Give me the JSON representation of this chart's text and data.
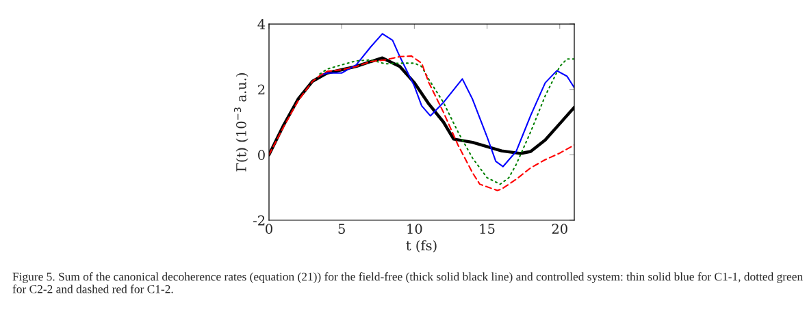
{
  "chart_data": {
    "type": "line",
    "xlabel": "t (fs)",
    "ylabel": "Γ(t) (10$^{−3}$ a.u.)",
    "xlim": [
      0,
      21
    ],
    "ylim": [
      -2,
      4
    ],
    "xticks": [
      0,
      5,
      10,
      15,
      20
    ],
    "yticks": [
      {
        "value": -2,
        "label": "-2"
      },
      0,
      2,
      4
    ],
    "grid": false,
    "marker": "none",
    "annotations": [
      "Figure 5. Sum of the canonical decoherence rates (equation (21)) for the field-free (thick solid black line) and controlled system: thin solid blue for C1-1, dotted green for C2-2 and dashed red for C1-2."
    ],
    "series": [
      {
        "color": "#000000",
        "line_style": "solid",
        "x": [
          0,
          1,
          2,
          3,
          4,
          5,
          6,
          7,
          7.8,
          9,
          10,
          11,
          12,
          12.7,
          14,
          15,
          16,
          17.3,
          18,
          19,
          20,
          21
        ],
        "values": [
          0,
          0.9,
          1.7,
          2.25,
          2.5,
          2.6,
          2.7,
          2.85,
          2.96,
          2.7,
          2.2,
          1.55,
          1.0,
          0.48,
          0.38,
          0.25,
          0.12,
          0.04,
          0.1,
          0.45,
          0.95,
          1.45
        ]
      },
      {
        "color": "#0000ff",
        "line_style": "solid",
        "x": [
          3.5,
          4,
          5,
          6,
          7,
          7.8,
          8.5,
          9,
          10,
          10.5,
          11.1,
          12,
          13.3,
          14,
          15,
          15.6,
          16.1,
          17,
          18,
          19,
          19.8,
          20.5,
          21
        ],
        "values": [
          2.42,
          2.5,
          2.5,
          2.75,
          3.3,
          3.7,
          3.5,
          3.0,
          2.1,
          1.5,
          1.19,
          1.6,
          2.32,
          1.7,
          0.55,
          -0.2,
          -0.36,
          0.1,
          1.2,
          2.2,
          2.57,
          2.4,
          2.05
        ]
      },
      {
        "color": "#008000",
        "line_style": "dotted",
        "x": [
          3.5,
          4,
          5,
          6,
          7,
          8,
          9,
          10,
          10.5,
          11,
          12,
          13,
          14,
          15,
          15.9,
          16.5,
          17,
          18,
          19,
          20,
          20.5,
          21
        ],
        "values": [
          2.47,
          2.62,
          2.75,
          2.87,
          2.9,
          2.78,
          2.8,
          2.8,
          2.7,
          2.3,
          1.6,
          0.7,
          -0.1,
          -0.7,
          -0.9,
          -0.7,
          -0.3,
          0.7,
          1.8,
          2.7,
          2.93,
          2.93
        ]
      },
      {
        "color": "#ff0000",
        "line_style": "dashed",
        "x": [
          0,
          1,
          2,
          3,
          3.5,
          4,
          5,
          6,
          7,
          8,
          9,
          9.8,
          10.5,
          11,
          12,
          13,
          14,
          14.5,
          15.7,
          16,
          17,
          18,
          19,
          20,
          21
        ],
        "values": [
          0,
          0.85,
          1.65,
          2.25,
          2.42,
          2.55,
          2.6,
          2.7,
          2.85,
          2.9,
          3.0,
          3.02,
          2.8,
          2.2,
          1.3,
          0.3,
          -0.55,
          -0.9,
          -1.09,
          -1.05,
          -0.75,
          -0.4,
          -0.15,
          0.05,
          0.3
        ]
      }
    ]
  }
}
